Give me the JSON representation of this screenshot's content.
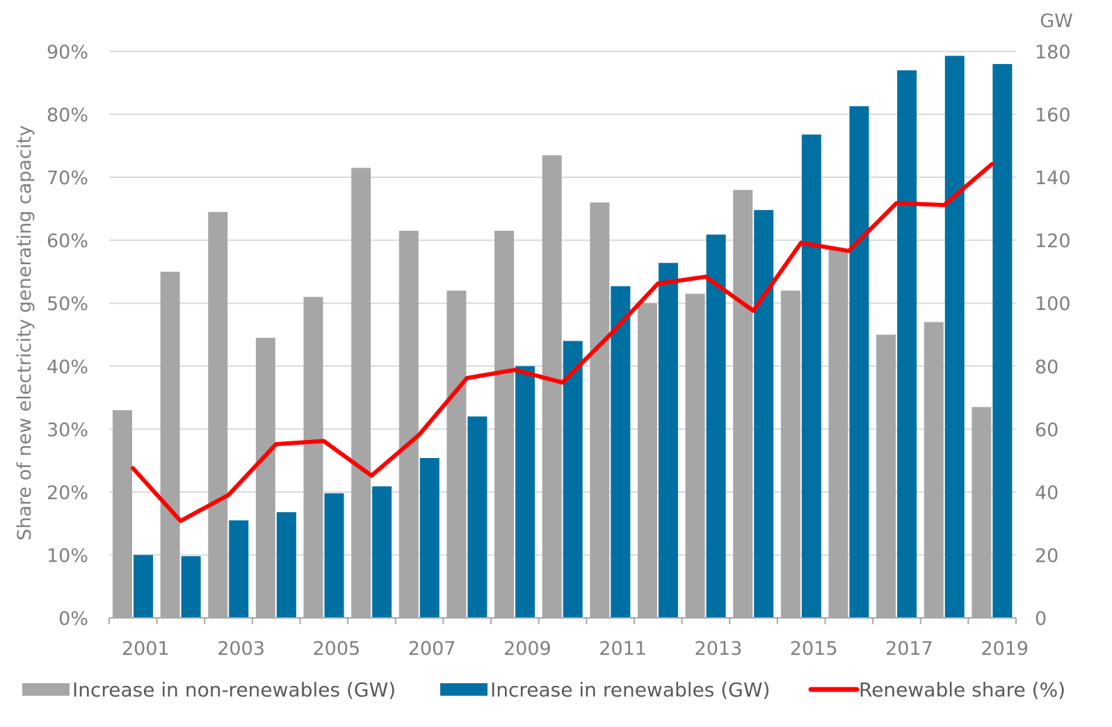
{
  "chart_data": {
    "type": "bar",
    "ylabel": "Share of new electricity generating capacity",
    "y2label": "GW",
    "x_tick_labels": [
      "2001",
      "2003",
      "2005",
      "2007",
      "2009",
      "2011",
      "2013",
      "2015",
      "2017",
      "2019"
    ],
    "categories": [
      "2001",
      "2002",
      "2003",
      "2004",
      "2005",
      "2006",
      "2007",
      "2008",
      "2009",
      "2010",
      "2011",
      "2012",
      "2013",
      "2014",
      "2015",
      "2016",
      "2017",
      "2018",
      "2019"
    ],
    "y_left": {
      "ticks": [
        "0%",
        "10%",
        "20%",
        "30%",
        "40%",
        "50%",
        "60%",
        "70%",
        "80%",
        "90%"
      ],
      "range": [
        0,
        90
      ]
    },
    "y_right": {
      "ticks": [
        "0",
        "20",
        "40",
        "60",
        "80",
        "100",
        "120",
        "140",
        "160",
        "180"
      ],
      "range": [
        0,
        180
      ]
    },
    "grid": "horizontal",
    "legend_position": "bottom",
    "series": [
      {
        "name": "Increase in non-renewables (GW)",
        "type": "bar",
        "axis": "right",
        "color": "#a6a6a6",
        "values": [
          66,
          110,
          129,
          89,
          102,
          143,
          123,
          104,
          123,
          147,
          132,
          100,
          103,
          136,
          104,
          117,
          90,
          94,
          67
        ]
      },
      {
        "name": "Increase in renewables (GW)",
        "type": "bar",
        "axis": "right",
        "color": "#0070a3",
        "values": [
          20,
          19.6,
          31,
          33.6,
          39.6,
          41.8,
          50.8,
          64,
          80,
          88,
          105.4,
          112.8,
          121.8,
          129.6,
          153.6,
          162.6,
          174,
          178.6,
          176
        ]
      },
      {
        "name": "Renewable share (%)",
        "type": "line",
        "axis": "left",
        "color": "#ff0000",
        "values": [
          23.8,
          15.4,
          19.5,
          27.6,
          28.1,
          22.6,
          29.1,
          38.1,
          39.4,
          37.4,
          45.0,
          53.1,
          54.2,
          48.8,
          59.6,
          58.3,
          65.9,
          65.6,
          72.1
        ]
      }
    ]
  }
}
